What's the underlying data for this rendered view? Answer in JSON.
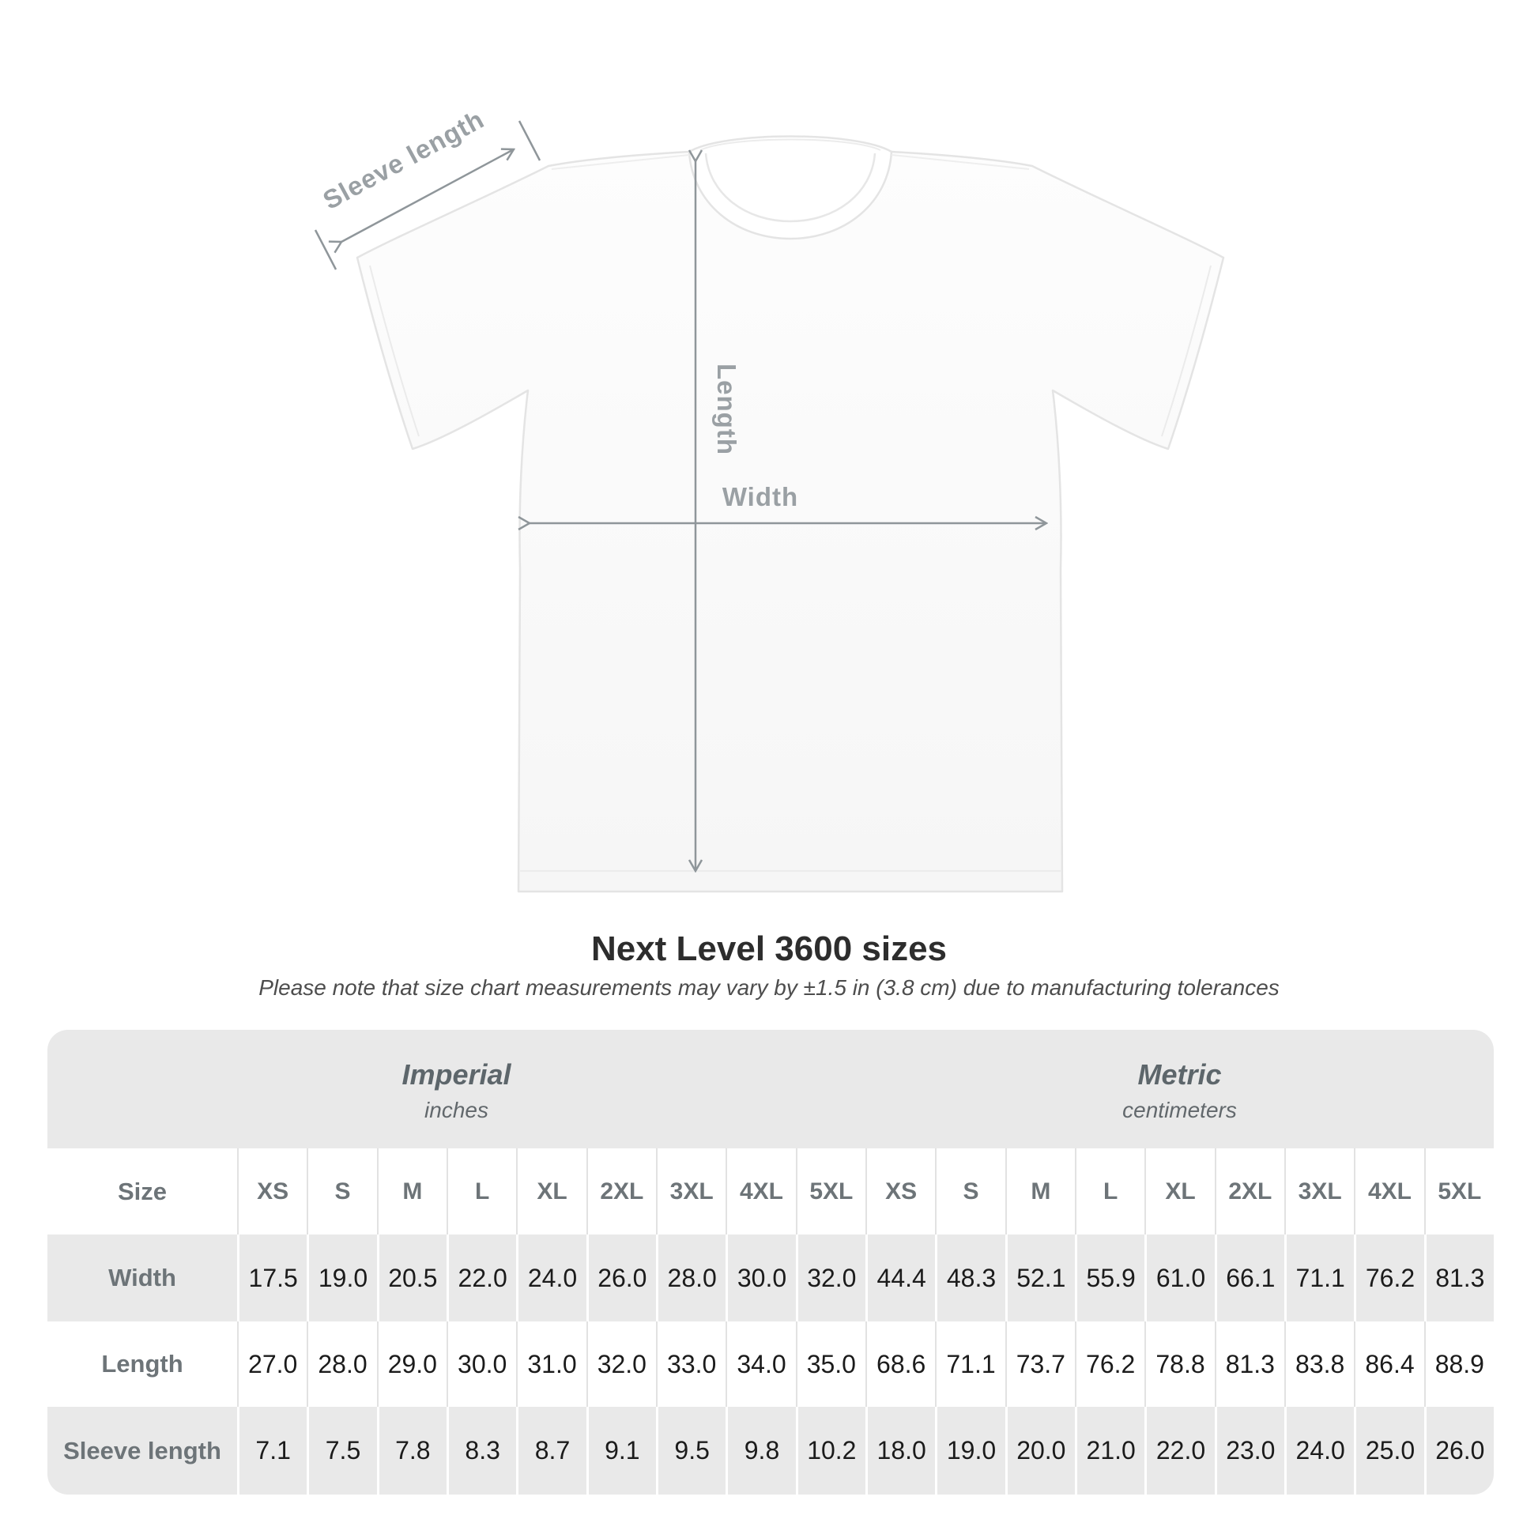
{
  "diagram": {
    "sleeve_label": "Sleeve length",
    "length_label": "Length",
    "width_label": "Width",
    "arrow_color": "#8f969a",
    "label_color": "#9aa0a4",
    "shirt_fill": "#fcfcfc",
    "shirt_outline": "#e4e4e4"
  },
  "chart_data": {
    "type": "table",
    "title": "Next Level 3600 sizes",
    "note": "Please note that size chart measurements may vary by ±1.5 in (3.8 cm) due to manufacturing tolerances",
    "corner_label": "Size",
    "column_groups": [
      {
        "label": "Imperial",
        "unit": "inches",
        "sizes": [
          "XS",
          "S",
          "M",
          "L",
          "XL",
          "2XL",
          "3XL",
          "4XL",
          "5XL"
        ]
      },
      {
        "label": "Metric",
        "unit": "centimeters",
        "sizes": [
          "XS",
          "S",
          "M",
          "L",
          "XL",
          "2XL",
          "3XL",
          "4XL",
          "5XL"
        ]
      }
    ],
    "rows": [
      {
        "label": "Width",
        "imperial": [
          "17.5",
          "19.0",
          "20.5",
          "22.0",
          "24.0",
          "26.0",
          "28.0",
          "30.0",
          "32.0"
        ],
        "metric": [
          "44.4",
          "48.3",
          "52.1",
          "55.9",
          "61.0",
          "66.1",
          "71.1",
          "76.2",
          "81.3"
        ]
      },
      {
        "label": "Length",
        "imperial": [
          "27.0",
          "28.0",
          "29.0",
          "30.0",
          "31.0",
          "32.0",
          "33.0",
          "34.0",
          "35.0"
        ],
        "metric": [
          "68.6",
          "71.1",
          "73.7",
          "76.2",
          "78.8",
          "81.3",
          "83.8",
          "86.4",
          "88.9"
        ]
      },
      {
        "label": "Sleeve length",
        "imperial": [
          "7.1",
          "7.5",
          "7.8",
          "8.3",
          "8.7",
          "9.1",
          "9.5",
          "9.8",
          "10.2"
        ],
        "metric": [
          "18.0",
          "19.0",
          "20.0",
          "21.0",
          "22.0",
          "23.0",
          "24.0",
          "25.0",
          "26.0"
        ]
      }
    ],
    "layout": {
      "container_bg": "#e9e9e9",
      "alt_row_bg": "#ffffff",
      "label_color": "#6d7478",
      "value_color": "#1b1b1b",
      "grid": "on"
    }
  }
}
